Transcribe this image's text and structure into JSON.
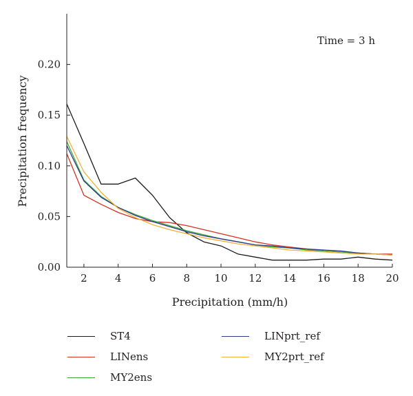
{
  "chart_data": {
    "type": "line",
    "annotation": "Time = 3 h",
    "xlabel": "Precipitation (mm/h)",
    "ylabel": "Precipitation frequency",
    "xlim": [
      1,
      20
    ],
    "ylim": [
      0,
      0.25
    ],
    "xticks": [
      2,
      4,
      6,
      8,
      10,
      12,
      14,
      16,
      18,
      20
    ],
    "xtick_labels": [
      "2",
      "4",
      "6",
      "8",
      "10",
      "12",
      "14",
      "16",
      "18",
      "20"
    ],
    "yticks": [
      0,
      0.05,
      0.1,
      0.15,
      0.2
    ],
    "ytick_labels": [
      "0.00",
      "0.05",
      "0.10",
      "0.15",
      "0.20"
    ],
    "grid": false,
    "legend_position": "bottom",
    "x": [
      1,
      2,
      3,
      4,
      5,
      6,
      7,
      8,
      9,
      10,
      11,
      12,
      13,
      14,
      15,
      16,
      17,
      18,
      19,
      20
    ],
    "series": [
      {
        "name": "ST4",
        "color": "#1a1a1a",
        "values": [
          0.161,
          0.122,
          0.082,
          0.082,
          0.088,
          0.071,
          0.049,
          0.034,
          0.025,
          0.021,
          0.013,
          0.01,
          0.007,
          0.007,
          0.007,
          0.008,
          0.008,
          0.01,
          0.008,
          0.007
        ]
      },
      {
        "name": "LINens",
        "color": "#d7301f",
        "values": [
          0.112,
          0.071,
          0.062,
          0.054,
          0.048,
          0.045,
          0.044,
          0.041,
          0.037,
          0.033,
          0.029,
          0.025,
          0.022,
          0.02,
          0.018,
          0.016,
          0.015,
          0.014,
          0.013,
          0.013
        ]
      },
      {
        "name": "MY2ens",
        "color": "#3aaa35",
        "values": [
          0.124,
          0.086,
          0.07,
          0.059,
          0.052,
          0.046,
          0.041,
          0.036,
          0.032,
          0.028,
          0.025,
          0.022,
          0.02,
          0.019,
          0.017,
          0.016,
          0.015,
          0.014,
          0.013,
          0.012
        ]
      },
      {
        "name": "LINprt_ref",
        "color": "#2b3990",
        "values": [
          0.12,
          0.085,
          0.069,
          0.059,
          0.051,
          0.045,
          0.04,
          0.035,
          0.031,
          0.028,
          0.025,
          0.022,
          0.021,
          0.019,
          0.018,
          0.017,
          0.016,
          0.014,
          0.013,
          0.012
        ]
      },
      {
        "name": "MY2prt_ref",
        "color": "#f2b233",
        "values": [
          0.129,
          0.094,
          0.074,
          0.058,
          0.049,
          0.042,
          0.037,
          0.033,
          0.029,
          0.026,
          0.023,
          0.021,
          0.019,
          0.017,
          0.016,
          0.015,
          0.014,
          0.013,
          0.013,
          0.012
        ]
      }
    ]
  }
}
